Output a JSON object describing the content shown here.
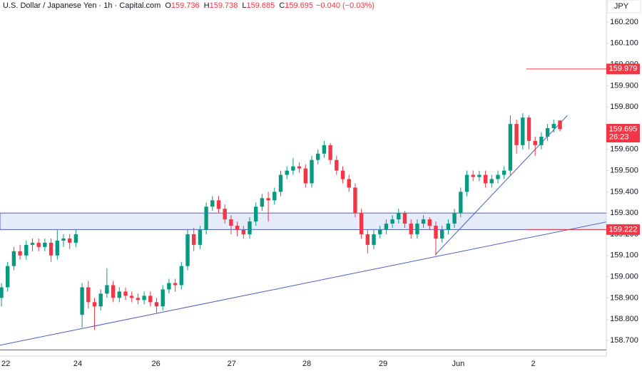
{
  "chart_data": {
    "type": "candlestick",
    "header": {
      "symbol": "U.S. Dollar / Japanese Yen · 1h · Capital.com",
      "fields": [
        {
          "key": "O",
          "value": "159.736"
        },
        {
          "key": "H",
          "value": "159.738"
        },
        {
          "key": "L",
          "value": "159.685"
        },
        {
          "key": "C",
          "value": "159.695"
        }
      ],
      "change": "−0.040 (−0.03%)"
    },
    "currency": "JPY",
    "up_color": "#089981",
    "down_color": "#f23645",
    "ohlc": [
      [
        158.9,
        158.97,
        158.86,
        158.95
      ],
      [
        158.95,
        159.07,
        158.93,
        159.05
      ],
      [
        159.05,
        159.14,
        159.03,
        159.12
      ],
      [
        159.12,
        159.15,
        159.08,
        159.1
      ],
      [
        159.1,
        159.17,
        159.08,
        159.15
      ],
      [
        159.15,
        159.18,
        159.12,
        159.16
      ],
      [
        159.16,
        159.18,
        159.12,
        159.14
      ],
      [
        159.14,
        159.18,
        159.12,
        159.16
      ],
      [
        159.16,
        159.18,
        159.07,
        159.1
      ],
      [
        159.1,
        159.22,
        159.08,
        159.17
      ],
      [
        159.17,
        159.2,
        159.14,
        159.18
      ],
      [
        159.18,
        159.2,
        159.13,
        159.16
      ],
      [
        159.16,
        159.22,
        159.14,
        159.2
      ],
      [
        158.82,
        158.97,
        158.76,
        158.95
      ],
      [
        158.95,
        158.98,
        158.85,
        158.88
      ],
      [
        158.88,
        158.9,
        158.75,
        158.86
      ],
      [
        158.86,
        158.94,
        158.84,
        158.92
      ],
      [
        158.92,
        159.04,
        158.9,
        158.96
      ],
      [
        158.96,
        158.98,
        158.88,
        158.9
      ],
      [
        158.9,
        158.95,
        158.88,
        158.93
      ],
      [
        158.93,
        158.95,
        158.89,
        158.91
      ],
      [
        158.91,
        158.93,
        158.88,
        158.9
      ],
      [
        158.9,
        158.92,
        158.87,
        158.89
      ],
      [
        158.89,
        158.93,
        158.87,
        158.91
      ],
      [
        158.91,
        158.93,
        158.86,
        158.88
      ],
      [
        158.88,
        158.9,
        158.83,
        158.86
      ],
      [
        158.86,
        158.96,
        158.84,
        158.94
      ],
      [
        158.94,
        158.99,
        158.92,
        158.97
      ],
      [
        158.97,
        158.99,
        158.93,
        158.96
      ],
      [
        158.96,
        159.07,
        158.94,
        159.05
      ],
      [
        159.05,
        159.22,
        159.03,
        159.2
      ],
      [
        159.2,
        159.23,
        159.12,
        159.15
      ],
      [
        159.15,
        159.24,
        159.13,
        159.22
      ],
      [
        159.22,
        159.35,
        159.2,
        159.33
      ],
      [
        159.33,
        159.38,
        159.31,
        159.36
      ],
      [
        159.36,
        159.38,
        159.3,
        159.32
      ],
      [
        159.32,
        159.34,
        159.25,
        159.27
      ],
      [
        159.27,
        159.29,
        159.2,
        159.24
      ],
      [
        159.24,
        159.26,
        159.19,
        159.22
      ],
      [
        159.22,
        159.24,
        159.18,
        159.2
      ],
      [
        159.2,
        159.28,
        159.18,
        159.26
      ],
      [
        159.26,
        159.35,
        159.24,
        159.33
      ],
      [
        159.33,
        159.39,
        159.31,
        159.37
      ],
      [
        159.37,
        159.4,
        159.26,
        159.36
      ],
      [
        159.36,
        159.42,
        159.34,
        159.4
      ],
      [
        159.4,
        159.5,
        159.38,
        159.48
      ],
      [
        159.48,
        159.52,
        159.46,
        159.5
      ],
      [
        159.5,
        159.56,
        159.48,
        159.52
      ],
      [
        159.52,
        159.54,
        159.49,
        159.51
      ],
      [
        159.51,
        159.53,
        159.42,
        159.44
      ],
      [
        159.44,
        159.57,
        159.42,
        159.55
      ],
      [
        159.55,
        159.6,
        159.53,
        159.58
      ],
      [
        159.58,
        159.64,
        159.56,
        159.62
      ],
      [
        159.62,
        159.63,
        159.53,
        159.55
      ],
      [
        159.55,
        159.57,
        159.48,
        159.5
      ],
      [
        159.5,
        159.52,
        159.44,
        159.46
      ],
      [
        159.46,
        159.48,
        159.4,
        159.42
      ],
      [
        159.42,
        159.44,
        159.28,
        159.3
      ],
      [
        159.3,
        159.32,
        159.18,
        159.2
      ],
      [
        159.2,
        159.22,
        159.11,
        159.15
      ],
      [
        159.15,
        159.22,
        159.13,
        159.2
      ],
      [
        159.2,
        159.24,
        159.18,
        159.22
      ],
      [
        159.22,
        159.27,
        159.2,
        159.25
      ],
      [
        159.25,
        159.29,
        159.23,
        159.27
      ],
      [
        159.27,
        159.32,
        159.25,
        159.3
      ],
      [
        159.3,
        159.31,
        159.23,
        159.25
      ],
      [
        159.25,
        159.27,
        159.18,
        159.2
      ],
      [
        159.2,
        159.27,
        159.18,
        159.25
      ],
      [
        159.25,
        159.29,
        159.23,
        159.27
      ],
      [
        159.27,
        159.28,
        159.22,
        159.24
      ],
      [
        159.24,
        159.26,
        159.1,
        159.18
      ],
      [
        159.18,
        159.24,
        159.16,
        159.22
      ],
      [
        159.22,
        159.27,
        159.2,
        159.25
      ],
      [
        159.25,
        159.32,
        159.23,
        159.3
      ],
      [
        159.3,
        159.42,
        159.28,
        159.4
      ],
      [
        159.4,
        159.5,
        159.38,
        159.48
      ],
      [
        159.48,
        159.5,
        159.45,
        159.47
      ],
      [
        159.47,
        159.5,
        159.45,
        159.48
      ],
      [
        159.48,
        159.5,
        159.42,
        159.44
      ],
      [
        159.44,
        159.48,
        159.42,
        159.46
      ],
      [
        159.46,
        159.5,
        159.44,
        159.48
      ],
      [
        159.48,
        159.52,
        159.46,
        159.5
      ],
      [
        159.5,
        159.76,
        159.48,
        159.72
      ],
      [
        159.72,
        159.74,
        159.58,
        159.62
      ],
      [
        159.62,
        159.77,
        159.6,
        159.75
      ],
      [
        159.75,
        159.76,
        159.6,
        159.64
      ],
      [
        159.64,
        159.66,
        159.57,
        159.62
      ],
      [
        159.62,
        159.68,
        159.6,
        159.66
      ],
      [
        159.66,
        159.72,
        159.64,
        159.7
      ],
      [
        159.7,
        159.74,
        159.68,
        159.72
      ],
      [
        159.736,
        159.738,
        159.685,
        159.695
      ]
    ],
    "xlim": [
      -0.23,
      97.47
    ],
    "xticks": [
      {
        "value": 0.7,
        "label": "22"
      },
      {
        "value": 12.3,
        "label": "24"
      },
      {
        "value": 24.9,
        "label": "26"
      },
      {
        "value": 37.1,
        "label": "27"
      },
      {
        "value": 49.2,
        "label": "28"
      },
      {
        "value": 61.5,
        "label": "29"
      },
      {
        "value": 73.6,
        "label": "Jun"
      },
      {
        "value": 85.7,
        "label": "2"
      }
    ],
    "ylim": [
      158.626,
      160.304
    ],
    "yticks": [
      {
        "value": 160.2,
        "label": "160.200"
      },
      {
        "value": 160.1,
        "label": "160.100"
      },
      {
        "value": 160.0,
        "label": "160.000"
      },
      {
        "value": 159.9,
        "label": "159.900"
      },
      {
        "value": 159.8,
        "label": "159.800"
      },
      {
        "value": 159.7,
        "label": "159.700"
      },
      {
        "value": 159.6,
        "label": "159.600"
      },
      {
        "value": 159.5,
        "label": "159.500"
      },
      {
        "value": 159.4,
        "label": "159.400"
      },
      {
        "value": 159.3,
        "label": "159.300"
      },
      {
        "value": 159.2,
        "label": "159.200"
      },
      {
        "value": 159.1,
        "label": "159.100"
      },
      {
        "value": 159.0,
        "label": "159.000"
      },
      {
        "value": 158.9,
        "label": "158.900"
      },
      {
        "value": 158.8,
        "label": "158.800"
      },
      {
        "value": 158.7,
        "label": "158.700"
      }
    ],
    "zone": {
      "low": 159.222,
      "high": 159.3,
      "color": "#4a5fc1"
    },
    "hline": 158.655,
    "trendlines": [
      {
        "x": [
          -0.23,
          97.47
        ],
        "y": [
          158.677,
          159.258
        ]
      },
      {
        "x": [
          69.9,
          91.2
        ],
        "y": [
          159.103,
          159.76
        ]
      }
    ],
    "price_tags": [
      {
        "value": 159.979,
        "label": "159.979"
      },
      {
        "value": 159.695,
        "label": "159.695",
        "timer": "26:23"
      },
      {
        "value": 159.222,
        "label": "159.222"
      }
    ]
  }
}
